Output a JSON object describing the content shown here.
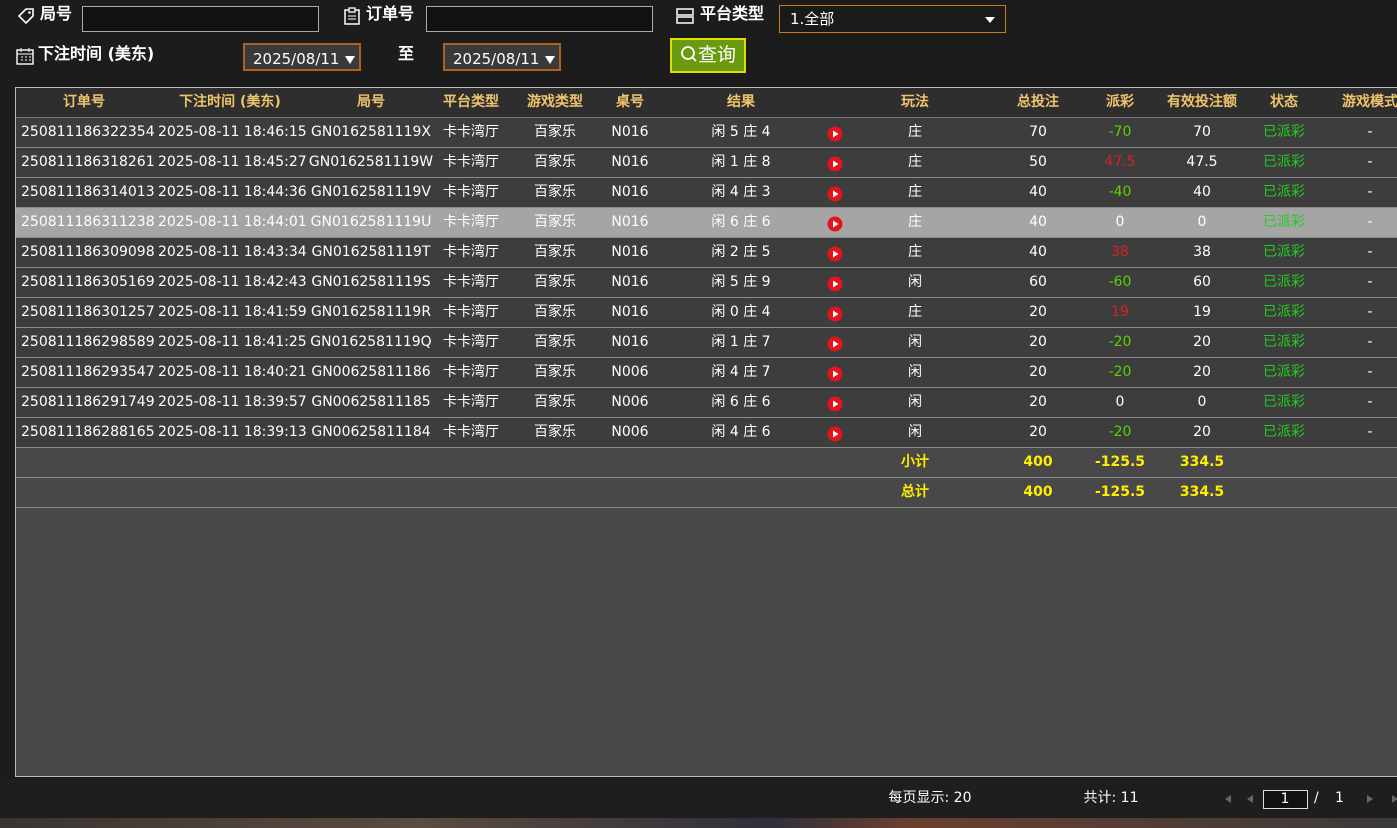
{
  "filters": {
    "round_label": "局号",
    "order_label": "订单号",
    "platform_label": "平台类型",
    "platform_value": "1.全部",
    "time_label": "下注时间 (美东)",
    "date_from": "2025/08/11",
    "to_label": "至",
    "date_to": "2025/08/11",
    "search_button": "查询"
  },
  "table": {
    "headers": [
      "订单号",
      "下注时间 (美东)",
      "局号",
      "平台类型",
      "游戏类型",
      "桌号",
      "结果",
      "玩法",
      "总投注",
      "派彩",
      "有效投注额",
      "状态",
      "游戏模式"
    ],
    "rows": [
      [
        "250811186322354",
        "2025-08-11 18:46:15",
        "GN0162581119X",
        "卡卡湾厅",
        "百家乐",
        "N016",
        "闲 5 庄 4",
        "庄",
        70,
        -70,
        70,
        "已派彩",
        "-"
      ],
      [
        "250811186318261",
        "2025-08-11 18:45:27",
        "GN0162581119W",
        "卡卡湾厅",
        "百家乐",
        "N016",
        "闲 1 庄 8",
        "庄",
        50,
        47.5,
        47.5,
        "已派彩",
        "-"
      ],
      [
        "250811186314013",
        "2025-08-11 18:44:36",
        "GN0162581119V",
        "卡卡湾厅",
        "百家乐",
        "N016",
        "闲 4 庄 3",
        "庄",
        40,
        -40,
        40,
        "已派彩",
        "-"
      ],
      [
        "250811186311238",
        "2025-08-11 18:44:01",
        "GN0162581119U",
        "卡卡湾厅",
        "百家乐",
        "N016",
        "闲 6 庄 6",
        "庄",
        40,
        0,
        0,
        "已派彩",
        "-"
      ],
      [
        "250811186309098",
        "2025-08-11 18:43:34",
        "GN0162581119T",
        "卡卡湾厅",
        "百家乐",
        "N016",
        "闲 2 庄 5",
        "庄",
        40,
        38,
        38,
        "已派彩",
        "-"
      ],
      [
        "250811186305169",
        "2025-08-11 18:42:43",
        "GN0162581119S",
        "卡卡湾厅",
        "百家乐",
        "N016",
        "闲 5 庄 9",
        "闲",
        60,
        -60,
        60,
        "已派彩",
        "-"
      ],
      [
        "250811186301257",
        "2025-08-11 18:41:59",
        "GN0162581119R",
        "卡卡湾厅",
        "百家乐",
        "N016",
        "闲 0 庄 4",
        "庄",
        20,
        19,
        19,
        "已派彩",
        "-"
      ],
      [
        "250811186298589",
        "2025-08-11 18:41:25",
        "GN0162581119Q",
        "卡卡湾厅",
        "百家乐",
        "N016",
        "闲 1 庄 7",
        "闲",
        20,
        -20,
        20,
        "已派彩",
        "-"
      ],
      [
        "250811186293547",
        "2025-08-11 18:40:21",
        "GN00625811186",
        "卡卡湾厅",
        "百家乐",
        "N006",
        "闲 4 庄 7",
        "闲",
        20,
        -20,
        20,
        "已派彩",
        "-"
      ],
      [
        "250811186291749",
        "2025-08-11 18:39:57",
        "GN00625811185",
        "卡卡湾厅",
        "百家乐",
        "N006",
        "闲 6 庄 6",
        "闲",
        20,
        0,
        0,
        "已派彩",
        "-"
      ],
      [
        "250811186288165",
        "2025-08-11 18:39:13",
        "GN00625811184",
        "卡卡湾厅",
        "百家乐",
        "N006",
        "闲 4 庄 6",
        "闲",
        20,
        -20,
        20,
        "已派彩",
        "-"
      ]
    ],
    "summary": [
      {
        "label": "小计",
        "total_bet": 400,
        "payout": -125.5,
        "valid_bet": 334.5
      },
      {
        "label": "总计",
        "total_bet": 400,
        "payout": -125.5,
        "valid_bet": 334.5
      }
    ]
  },
  "footer": {
    "page_size": "每页显示: 20",
    "total": "共计: 11",
    "current_page": 1,
    "separator": "/",
    "total_pages": 1
  }
}
